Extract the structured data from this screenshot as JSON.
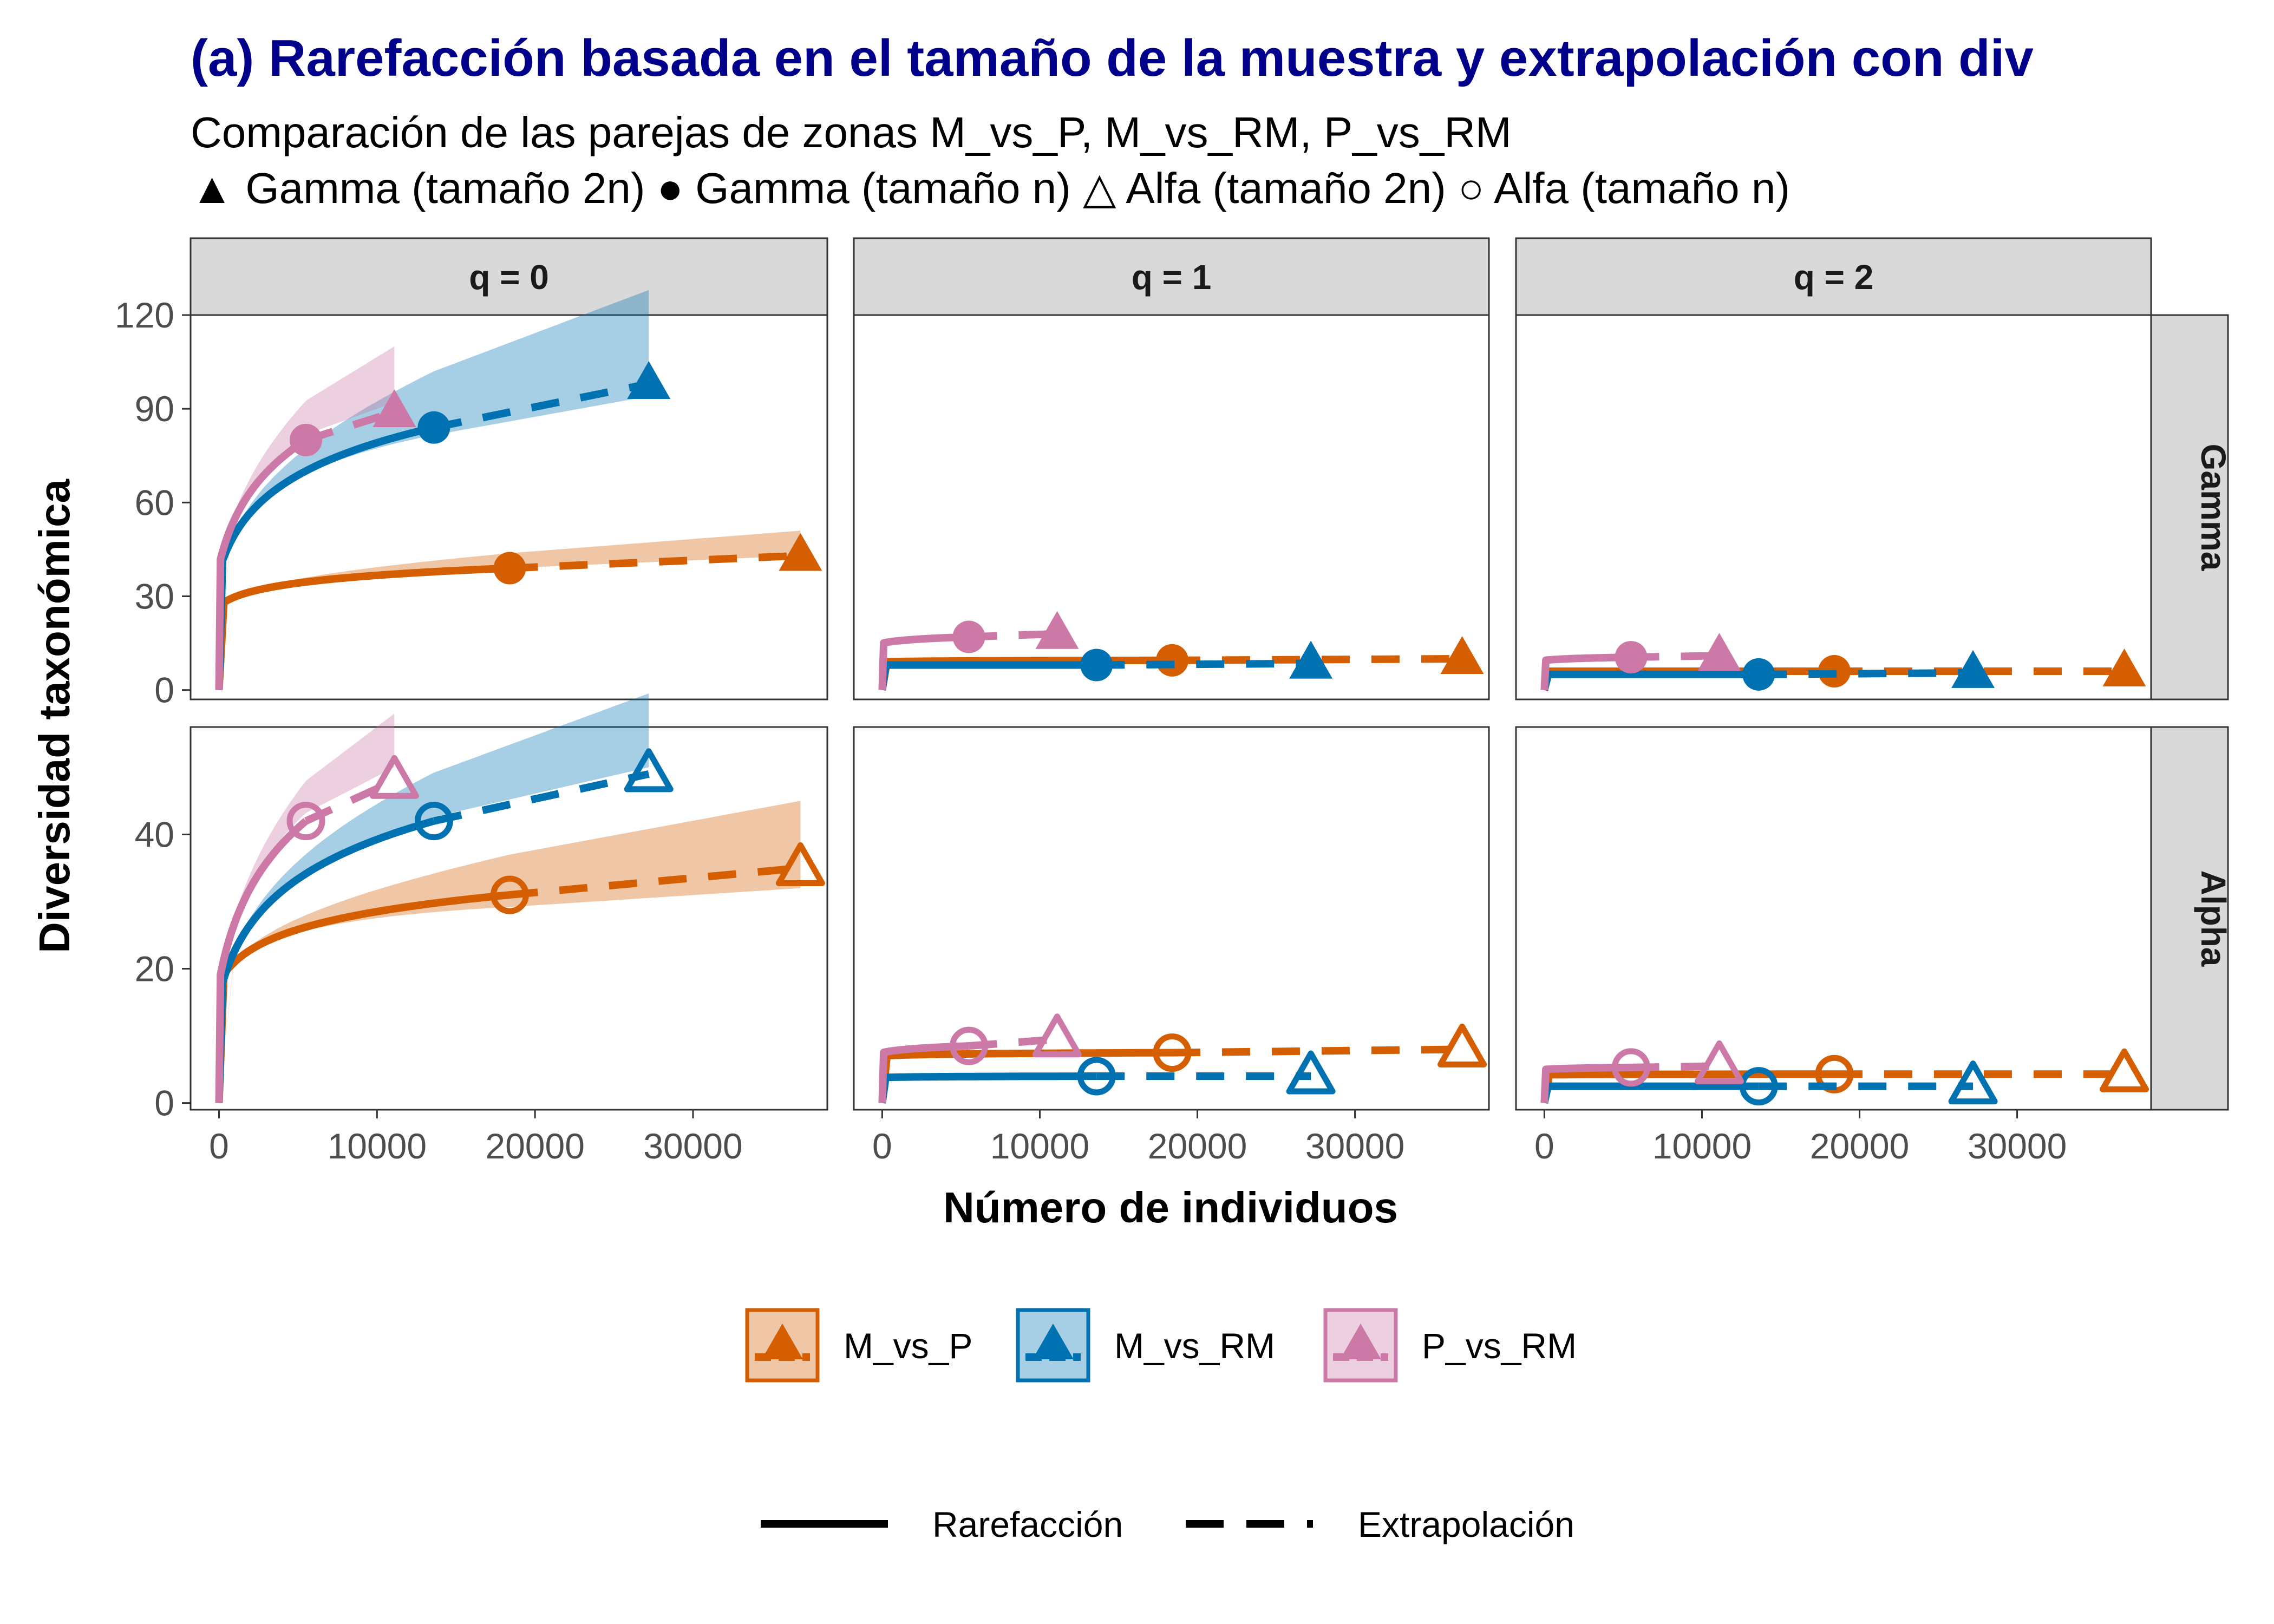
{
  "chart_data": {
    "type": "line",
    "title": "(a) Rarefacción basada en el tamaño de la muestra  y extrapolación con div",
    "subtitle_lines": [
      "Comparación de las parejas de zonas M_vs_P, M_vs_RM, P_vs_RM",
      "▲ Gamma (tamaño 2n)  ● Gamma (tamaño n)  △ Alfa (tamaño 2n)  ○ Alfa (tamaño n)"
    ],
    "xlabel": "Número de individuos",
    "ylabel": "Diversidad taxonómica",
    "x_ticks": [
      "0",
      "10000",
      "20000",
      "30000"
    ],
    "xlim": [
      -1800,
      38500
    ],
    "columns": [
      "q = 0",
      "q = 1",
      "q = 2"
    ],
    "rows": [
      "Gamma",
      "Alpha"
    ],
    "row_ylims": [
      [
        -3,
        120
      ],
      [
        -1,
        56
      ]
    ],
    "row_ticks": [
      [
        "0",
        "30",
        "60",
        "90",
        "120"
      ],
      [
        "0",
        "20",
        "40"
      ]
    ],
    "legend_position": "bottom",
    "legend": {
      "groups": [
        "M_vs_P",
        "M_vs_RM",
        "P_vs_RM"
      ],
      "methods": [
        "Rarefacción",
        "Extrapolación"
      ]
    },
    "colors": {
      "M_vs_P": "#D55E00",
      "M_vs_RM": "#0072B2",
      "P_vs_RM": "#CC79A7"
    },
    "series": [
      {
        "name": "M_vs_P",
        "n": 18400,
        "n2": 36800,
        "panels": [
          {
            "row": "Gamma",
            "col": "q = 0",
            "obs": 39,
            "ext": 43,
            "s0": 27,
            "ci_lo": 39,
            "ci_hi": 47
          },
          {
            "row": "Gamma",
            "col": "q = 1",
            "obs": 9.5,
            "ext": 10,
            "s0": 9
          },
          {
            "row": "Gamma",
            "col": "q = 2",
            "obs": 6,
            "ext": 6,
            "s0": 6
          },
          {
            "row": "Alpha",
            "col": "q = 0",
            "obs": 31,
            "ext": 35,
            "s0": 18,
            "ci_lo": 28,
            "ci_hi": 41
          },
          {
            "row": "Alpha",
            "col": "q = 1",
            "obs": 7.5,
            "ext": 8,
            "s0": 7
          },
          {
            "row": "Alpha",
            "col": "q = 2",
            "obs": 4.3,
            "ext": 4.3,
            "s0": 4.2
          }
        ]
      },
      {
        "name": "M_vs_RM",
        "n": 13600,
        "n2": 27200,
        "panels": [
          {
            "row": "Gamma",
            "col": "q = 0",
            "obs": 84,
            "ext": 98,
            "s0": 38,
            "ci_lo": 80,
            "ci_hi": 114
          },
          {
            "row": "Gamma",
            "col": "q = 1",
            "obs": 8,
            "ext": 8.5,
            "s0": 8
          },
          {
            "row": "Gamma",
            "col": "q = 2",
            "obs": 5,
            "ext": 5.5,
            "s0": 5
          },
          {
            "row": "Alpha",
            "col": "q = 0",
            "obs": 42,
            "ext": 49,
            "s0": 16,
            "ci_lo": 43,
            "ci_hi": 54
          },
          {
            "row": "Alpha",
            "col": "q = 1",
            "obs": 4,
            "ext": 4,
            "s0": 3.8
          },
          {
            "row": "Alpha",
            "col": "q = 2",
            "obs": 2.5,
            "ext": 2.5,
            "s0": 2.5
          }
        ]
      },
      {
        "name": "P_vs_RM",
        "n": 5500,
        "n2": 11100,
        "panels": [
          {
            "row": "Gamma",
            "col": "q = 0",
            "obs": 80,
            "ext": 89,
            "s0": 40,
            "ci_lo": 83,
            "ci_hi": 101
          },
          {
            "row": "Gamma",
            "col": "q = 1",
            "obs": 17,
            "ext": 18,
            "s0": 15
          },
          {
            "row": "Gamma",
            "col": "q = 2",
            "obs": 10.5,
            "ext": 11,
            "s0": 9.5
          },
          {
            "row": "Alpha",
            "col": "q = 0",
            "obs": 42,
            "ext": 48,
            "s0": 18,
            "ci_lo": 44,
            "ci_hi": 52
          },
          {
            "row": "Alpha",
            "col": "q = 1",
            "obs": 8.5,
            "ext": 9.5,
            "s0": 7.5
          },
          {
            "row": "Alpha",
            "col": "q = 2",
            "obs": 5.3,
            "ext": 5.5,
            "s0": 5
          }
        ]
      }
    ]
  }
}
